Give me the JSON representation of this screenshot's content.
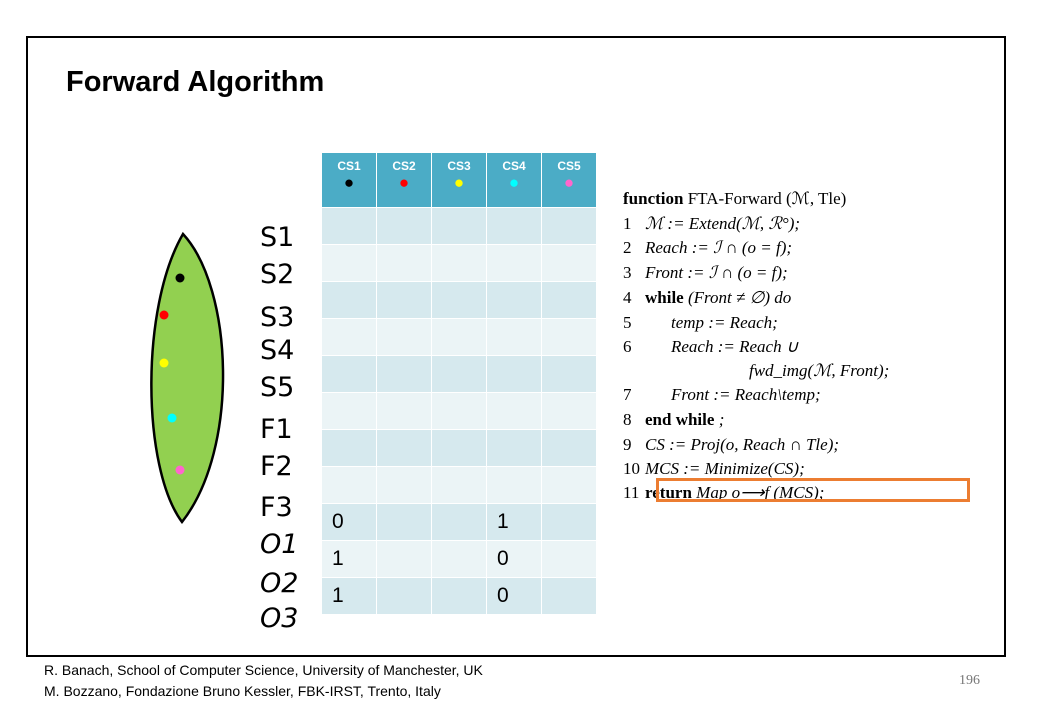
{
  "title": "Forward Algorithm",
  "states": [
    "S1",
    "S2",
    "S3",
    "S4",
    "S5",
    "F1",
    "F2",
    "F3",
    "O1",
    "O2",
    "O3"
  ],
  "leaf": {
    "fill": "#92d050",
    "dots": [
      "#000000",
      "#ff0000",
      "#ffff00",
      "#00ffff",
      "#ff66cc"
    ]
  },
  "table": {
    "header_color": "#4bacc6",
    "columns": [
      {
        "label": "CS1",
        "dot_color": "#000000"
      },
      {
        "label": "CS2",
        "dot_color": "#ff0000"
      },
      {
        "label": "CS3",
        "dot_color": "#ffff00"
      },
      {
        "label": "CS4",
        "dot_color": "#00ffff"
      },
      {
        "label": "CS5",
        "dot_color": "#ff66cc"
      }
    ],
    "rows": [
      [
        "",
        "",
        "",
        "",
        ""
      ],
      [
        "",
        "",
        "",
        "",
        ""
      ],
      [
        "",
        "",
        "",
        "",
        ""
      ],
      [
        "",
        "",
        "",
        "",
        ""
      ],
      [
        "",
        "",
        "",
        "",
        ""
      ],
      [
        "",
        "",
        "",
        "",
        ""
      ],
      [
        "",
        "",
        "",
        "",
        ""
      ],
      [
        "",
        "",
        "",
        "",
        ""
      ],
      [
        "0",
        "",
        "",
        "1",
        ""
      ],
      [
        "1",
        "",
        "",
        "0",
        ""
      ],
      [
        "1",
        "",
        "",
        "0",
        ""
      ]
    ]
  },
  "algorithm": {
    "header_kw": "function",
    "header_name": "FTA-Forward (ℳ, Tle)",
    "lines": [
      {
        "no": "1",
        "kw": "",
        "text": "ℳ := Extend(ℳ, ℛ°);",
        "indent": 0
      },
      {
        "no": "2",
        "kw": "",
        "text": "Reach := ℐ ∩ (o = f);",
        "indent": 0
      },
      {
        "no": "3",
        "kw": "",
        "text": "Front := ℐ ∩ (o = f);",
        "indent": 0
      },
      {
        "no": "4",
        "kw": "while",
        "text": "(Front ≠ ∅) do",
        "indent": 0
      },
      {
        "no": "5",
        "kw": "",
        "text": "temp := Reach;",
        "indent": 1
      },
      {
        "no": "6",
        "kw": "",
        "text": "Reach := Reach ∪",
        "indent": 1
      },
      {
        "no": "",
        "kw": "",
        "text": "fwd_img(ℳ, Front);",
        "indent": 4
      },
      {
        "no": "7",
        "kw": "",
        "text": "Front := Reach\\temp;",
        "indent": 1
      },
      {
        "no": "8",
        "kw": "end while",
        "text": ";",
        "indent": 0
      },
      {
        "no": "9",
        "kw": "",
        "text": "CS := Proj(o, Reach ∩ Tle);",
        "indent": 0
      },
      {
        "no": "10",
        "kw": "",
        "text": "MCS := Minimize(CS);",
        "indent": 0
      },
      {
        "no": "11",
        "kw": "return",
        "text": "Map o⟶f (MCS);",
        "indent": 0
      }
    ],
    "highlight_color": "#ec7d31"
  },
  "footer": {
    "line1": "R. Banach, School of  Computer Science, University of Manchester, UK",
    "line2": "M. Bozzano, Fondazione  Bruno Kessler, FBK-IRST, Trento, Italy"
  },
  "page_number": "196"
}
